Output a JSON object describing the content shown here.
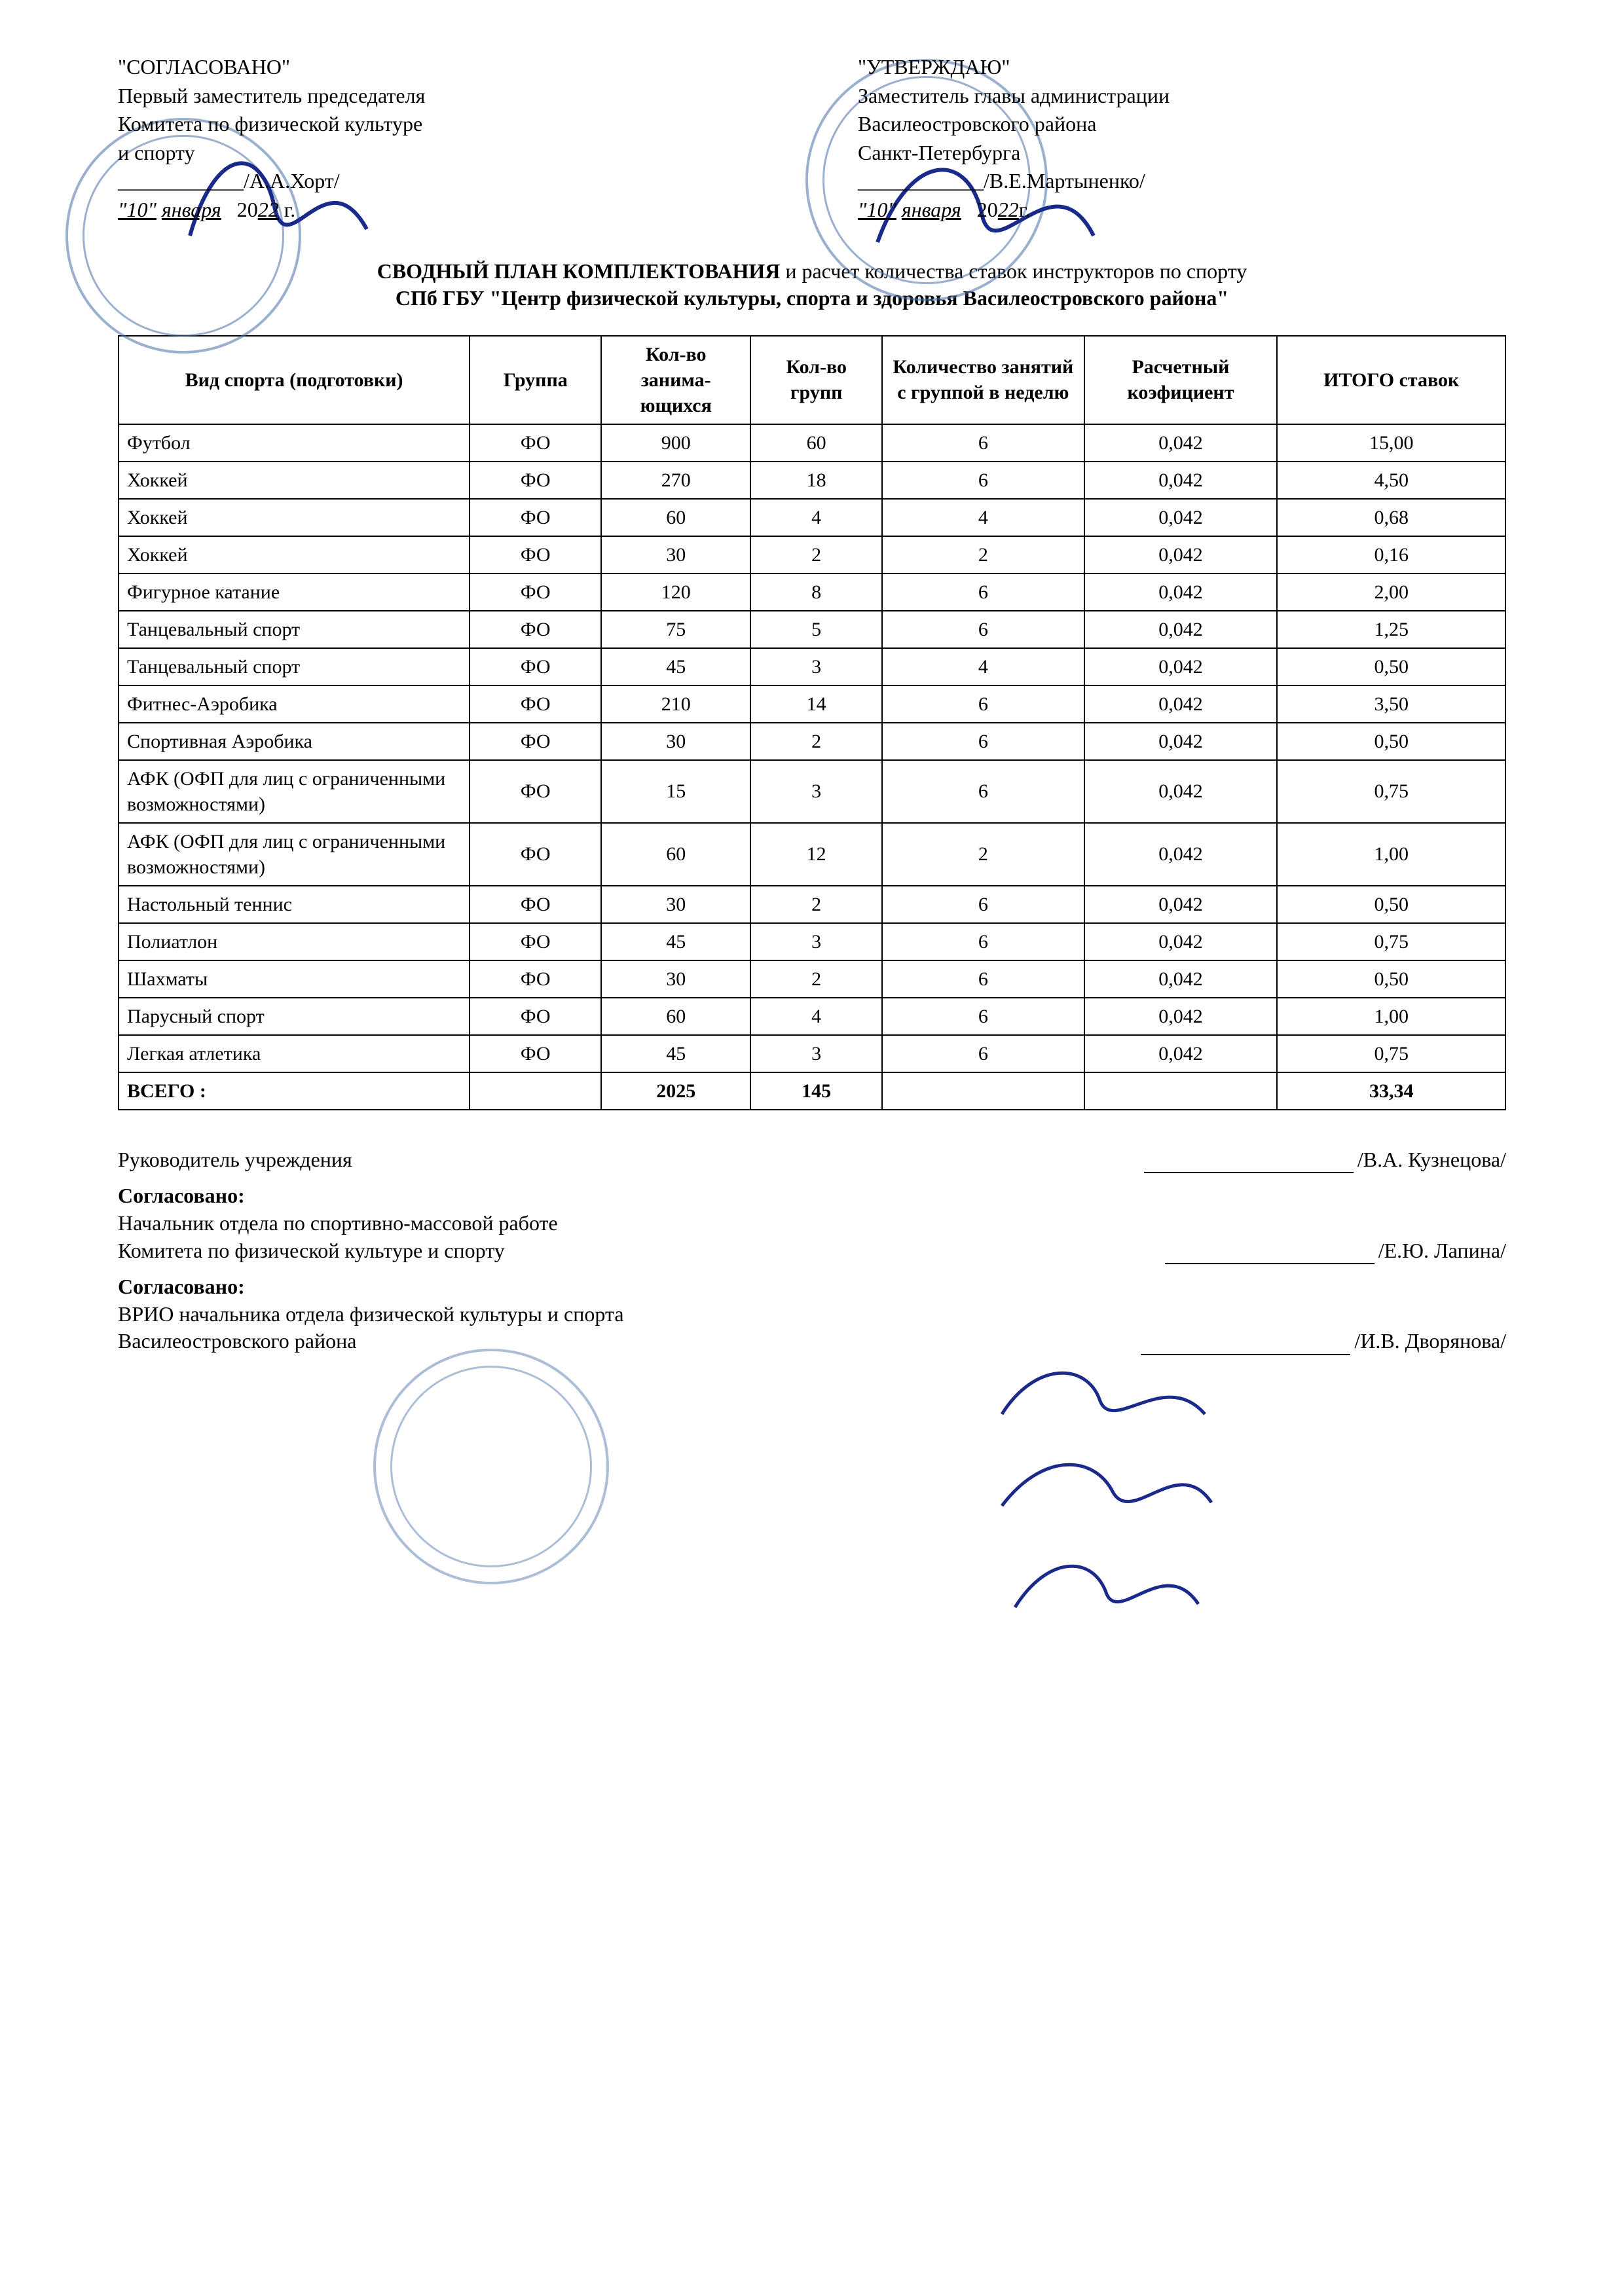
{
  "approvals": {
    "left": {
      "heading": "\"СОГЛАСОВАНО\"",
      "line1": "Первый заместитель председателя",
      "line2": "Комитета по физической культуре",
      "line3": "и спорту",
      "signatory": "/А.А.Хорт/",
      "date_day": "\"10\"",
      "date_month": "января",
      "date_year_prefix": "20",
      "date_year_suffix": "22",
      "date_tail": " г."
    },
    "right": {
      "heading": "\"УТВЕРЖДАЮ\"",
      "line1": "Заместитель главы администрации",
      "line2": "Василеостровского района",
      "line3": "Санкт-Петербурга",
      "signatory": "/В.Е.Мартыненко/",
      "date_day": "\"10\"",
      "date_month": "января",
      "date_year_prefix": "20",
      "date_year_suffix": "22",
      "date_tail": "г."
    }
  },
  "title": {
    "main": "СВОДНЫЙ ПЛАН КОМПЛЕКТОВАНИЯ",
    "rest": " и расчет количества ставок инструкторов по спорту",
    "subtitle": "СПб ГБУ \"Центр физической культуры, спорта и здоровья Василеостровского района\""
  },
  "table": {
    "columns": [
      "Вид спорта (подготовки)",
      "Группа",
      "Кол-во занима-ющихся",
      "Кол-во групп",
      "Количество занятий с группой в неделю",
      "Расчетный коэфициент",
      "ИТОГО ставок"
    ],
    "col_align": [
      "left",
      "center",
      "center",
      "center",
      "center",
      "center",
      "center"
    ],
    "rows": [
      [
        "Футбол",
        "ФО",
        "900",
        "60",
        "6",
        "0,042",
        "15,00"
      ],
      [
        "Хоккей",
        "ФО",
        "270",
        "18",
        "6",
        "0,042",
        "4,50"
      ],
      [
        "Хоккей",
        "ФО",
        "60",
        "4",
        "4",
        "0,042",
        "0,68"
      ],
      [
        "Хоккей",
        "ФО",
        "30",
        "2",
        "2",
        "0,042",
        "0,16"
      ],
      [
        "Фигурное катание",
        "ФО",
        "120",
        "8",
        "6",
        "0,042",
        "2,00"
      ],
      [
        "Танцевальный спорт",
        "ФО",
        "75",
        "5",
        "6",
        "0,042",
        "1,25"
      ],
      [
        "Танцевальный спорт",
        "ФО",
        "45",
        "3",
        "4",
        "0,042",
        "0,50"
      ],
      [
        "Фитнес-Аэробика",
        "ФО",
        "210",
        "14",
        "6",
        "0,042",
        "3,50"
      ],
      [
        "Спортивная Аэробика",
        "ФО",
        "30",
        "2",
        "6",
        "0,042",
        "0,50"
      ],
      [
        "АФК (ОФП для лиц с ограниченными возможностями)",
        "ФО",
        "15",
        "3",
        "6",
        "0,042",
        "0,75"
      ],
      [
        "АФК (ОФП для лиц с ограниченными возможностями)",
        "ФО",
        "60",
        "12",
        "2",
        "0,042",
        "1,00"
      ],
      [
        "Настольный теннис",
        "ФО",
        "30",
        "2",
        "6",
        "0,042",
        "0,50"
      ],
      [
        "Полиатлон",
        "ФО",
        "45",
        "3",
        "6",
        "0,042",
        "0,75"
      ],
      [
        "Шахматы",
        "ФО",
        "30",
        "2",
        "6",
        "0,042",
        "0,50"
      ],
      [
        "Парусный спорт",
        "ФО",
        "60",
        "4",
        "6",
        "0,042",
        "1,00"
      ],
      [
        "Легкая атлетика",
        "ФО",
        "45",
        "3",
        "6",
        "0,042",
        "0,75"
      ]
    ],
    "total_row": [
      "ВСЕГО :",
      "",
      "2025",
      "145",
      "",
      "",
      "33,34"
    ]
  },
  "footer": {
    "head_label": "Руководитель учреждения",
    "head_name": "/В.А. Кузнецова/",
    "agree_label": "Согласовано:",
    "agree1_line1": "Начальник отдела по спортивно-массовой работе",
    "agree1_line2": "Комитета по физической культуре и спорту",
    "agree1_name": "/Е.Ю. Лапина/",
    "agree2_line1": "ВРИО начальника отдела  физической культуры и спорта",
    "agree2_line2": "Василеостровского района",
    "agree2_name": "/И.В. Дворянова/"
  },
  "style": {
    "page_bg": "#ffffff",
    "text_color": "#000000",
    "border_color": "#000000",
    "stamp_color": "#4a6ea8",
    "ink_color": "#1a2a8a",
    "font_family": "Times New Roman",
    "base_fontsize_pt": 12,
    "table_fontsize_pt": 11
  }
}
